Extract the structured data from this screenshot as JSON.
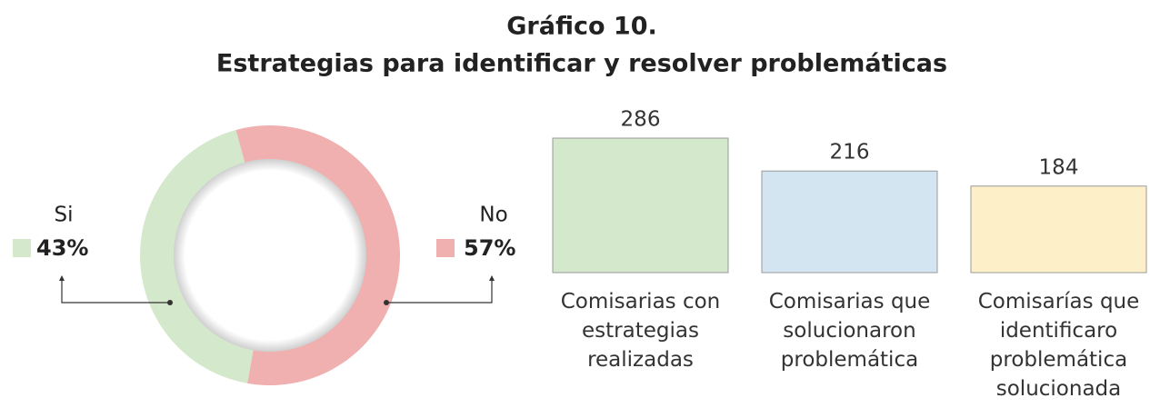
{
  "title": "Gráfico 10.",
  "subtitle": "Estrategias para identificar y resolver problemáticas",
  "chart_data": [
    {
      "type": "pie",
      "categories": [
        "Si",
        "No"
      ],
      "values": [
        43,
        57
      ],
      "value_labels": [
        "43%",
        "57%"
      ],
      "colors": [
        "#d4e8cc",
        "#f0b0b0"
      ]
    },
    {
      "type": "bar",
      "categories": [
        "Comisarias con estrategias realizadas",
        "Comisarias que solucionaron problemática",
        "Comisarías que identificaro problemática solucionada"
      ],
      "values": [
        286,
        216,
        184
      ],
      "colors": [
        "#d4e8cc",
        "#d4e5f2",
        "#fdf0c8"
      ]
    }
  ]
}
